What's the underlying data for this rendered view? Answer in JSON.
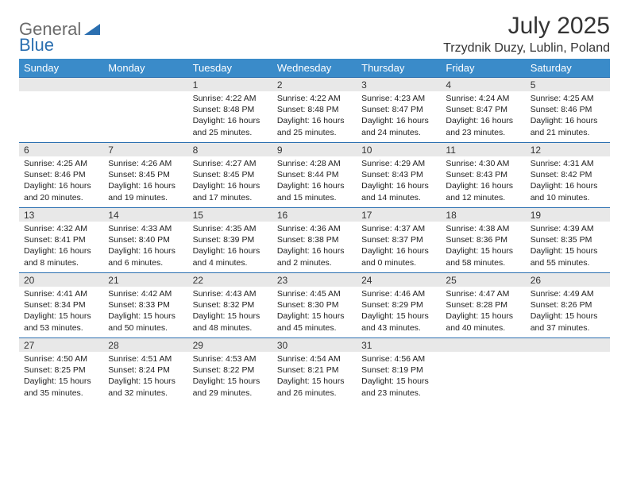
{
  "brand": {
    "left": "General",
    "right": "Blue"
  },
  "title": "July 2025",
  "location": "Trzydnik Duzy, Lublin, Poland",
  "colors": {
    "header_bg": "#3a8bc9",
    "header_text": "#ffffff",
    "daynum_bg": "#e8e8e8",
    "rule": "#2b6fb0",
    "logo_gray": "#6b6b6b",
    "logo_blue": "#2b6fb0",
    "page_bg": "#ffffff",
    "text": "#222222"
  },
  "weekdays": [
    "Sunday",
    "Monday",
    "Tuesday",
    "Wednesday",
    "Thursday",
    "Friday",
    "Saturday"
  ],
  "weeks": [
    [
      null,
      null,
      {
        "n": "1",
        "sr": "4:22 AM",
        "ss": "8:48 PM",
        "dl": "16 hours and 25 minutes."
      },
      {
        "n": "2",
        "sr": "4:22 AM",
        "ss": "8:48 PM",
        "dl": "16 hours and 25 minutes."
      },
      {
        "n": "3",
        "sr": "4:23 AM",
        "ss": "8:47 PM",
        "dl": "16 hours and 24 minutes."
      },
      {
        "n": "4",
        "sr": "4:24 AM",
        "ss": "8:47 PM",
        "dl": "16 hours and 23 minutes."
      },
      {
        "n": "5",
        "sr": "4:25 AM",
        "ss": "8:46 PM",
        "dl": "16 hours and 21 minutes."
      }
    ],
    [
      {
        "n": "6",
        "sr": "4:25 AM",
        "ss": "8:46 PM",
        "dl": "16 hours and 20 minutes."
      },
      {
        "n": "7",
        "sr": "4:26 AM",
        "ss": "8:45 PM",
        "dl": "16 hours and 19 minutes."
      },
      {
        "n": "8",
        "sr": "4:27 AM",
        "ss": "8:45 PM",
        "dl": "16 hours and 17 minutes."
      },
      {
        "n": "9",
        "sr": "4:28 AM",
        "ss": "8:44 PM",
        "dl": "16 hours and 15 minutes."
      },
      {
        "n": "10",
        "sr": "4:29 AM",
        "ss": "8:43 PM",
        "dl": "16 hours and 14 minutes."
      },
      {
        "n": "11",
        "sr": "4:30 AM",
        "ss": "8:43 PM",
        "dl": "16 hours and 12 minutes."
      },
      {
        "n": "12",
        "sr": "4:31 AM",
        "ss": "8:42 PM",
        "dl": "16 hours and 10 minutes."
      }
    ],
    [
      {
        "n": "13",
        "sr": "4:32 AM",
        "ss": "8:41 PM",
        "dl": "16 hours and 8 minutes."
      },
      {
        "n": "14",
        "sr": "4:33 AM",
        "ss": "8:40 PM",
        "dl": "16 hours and 6 minutes."
      },
      {
        "n": "15",
        "sr": "4:35 AM",
        "ss": "8:39 PM",
        "dl": "16 hours and 4 minutes."
      },
      {
        "n": "16",
        "sr": "4:36 AM",
        "ss": "8:38 PM",
        "dl": "16 hours and 2 minutes."
      },
      {
        "n": "17",
        "sr": "4:37 AM",
        "ss": "8:37 PM",
        "dl": "16 hours and 0 minutes."
      },
      {
        "n": "18",
        "sr": "4:38 AM",
        "ss": "8:36 PM",
        "dl": "15 hours and 58 minutes."
      },
      {
        "n": "19",
        "sr": "4:39 AM",
        "ss": "8:35 PM",
        "dl": "15 hours and 55 minutes."
      }
    ],
    [
      {
        "n": "20",
        "sr": "4:41 AM",
        "ss": "8:34 PM",
        "dl": "15 hours and 53 minutes."
      },
      {
        "n": "21",
        "sr": "4:42 AM",
        "ss": "8:33 PM",
        "dl": "15 hours and 50 minutes."
      },
      {
        "n": "22",
        "sr": "4:43 AM",
        "ss": "8:32 PM",
        "dl": "15 hours and 48 minutes."
      },
      {
        "n": "23",
        "sr": "4:45 AM",
        "ss": "8:30 PM",
        "dl": "15 hours and 45 minutes."
      },
      {
        "n": "24",
        "sr": "4:46 AM",
        "ss": "8:29 PM",
        "dl": "15 hours and 43 minutes."
      },
      {
        "n": "25",
        "sr": "4:47 AM",
        "ss": "8:28 PM",
        "dl": "15 hours and 40 minutes."
      },
      {
        "n": "26",
        "sr": "4:49 AM",
        "ss": "8:26 PM",
        "dl": "15 hours and 37 minutes."
      }
    ],
    [
      {
        "n": "27",
        "sr": "4:50 AM",
        "ss": "8:25 PM",
        "dl": "15 hours and 35 minutes."
      },
      {
        "n": "28",
        "sr": "4:51 AM",
        "ss": "8:24 PM",
        "dl": "15 hours and 32 minutes."
      },
      {
        "n": "29",
        "sr": "4:53 AM",
        "ss": "8:22 PM",
        "dl": "15 hours and 29 minutes."
      },
      {
        "n": "30",
        "sr": "4:54 AM",
        "ss": "8:21 PM",
        "dl": "15 hours and 26 minutes."
      },
      {
        "n": "31",
        "sr": "4:56 AM",
        "ss": "8:19 PM",
        "dl": "15 hours and 23 minutes."
      },
      null,
      null
    ]
  ],
  "labels": {
    "sunrise": "Sunrise:",
    "sunset": "Sunset:",
    "daylight": "Daylight:"
  }
}
